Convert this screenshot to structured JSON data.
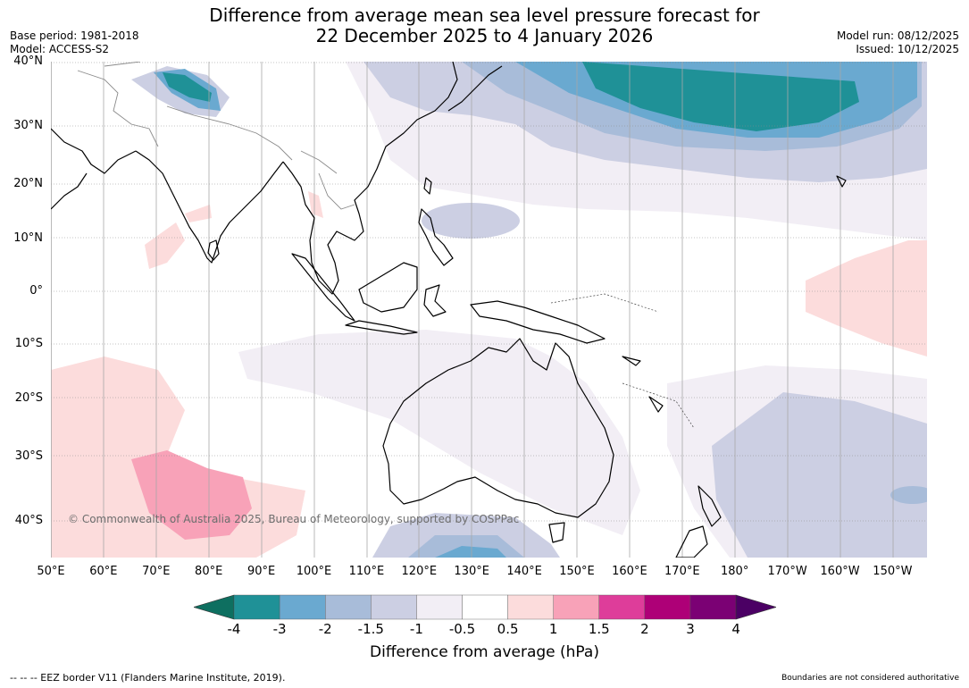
{
  "title": {
    "line1": "Difference from average mean sea level pressure forecast for",
    "line2": "22 December 2025 to 4 January 2026"
  },
  "meta": {
    "base_period": "Base period: 1981-2018",
    "model": "Model: ACCESS-S2",
    "model_run": "Model run: 08/12/2025",
    "issued": "Issued: 10/12/2025"
  },
  "map": {
    "lat_labels": [
      "40°N",
      "30°N",
      "20°N",
      "10°N",
      "0°",
      "10°S",
      "20°S",
      "30°S",
      "40°S"
    ],
    "lon_labels": [
      "50°E",
      "60°E",
      "70°E",
      "80°E",
      "90°E",
      "100°E",
      "110°E",
      "120°E",
      "130°E",
      "140°E",
      "150°E",
      "160°E",
      "170°E",
      "180°",
      "170°W",
      "160°W",
      "150°W"
    ],
    "copyright": "© Commonwealth of Australia 2025, Bureau of Meteorology, supported by COSPPac"
  },
  "legend": {
    "ticks": [
      "-4",
      "-3",
      "-2",
      "-1.5",
      "-1",
      "-0.5",
      "0.5",
      "1",
      "1.5",
      "2",
      "3",
      "4"
    ],
    "colors": [
      "#0e6f60",
      "#1f9197",
      "#6aa9d0",
      "#a8bcd9",
      "#cccfe3",
      "#f2eef5",
      "#ffffff",
      "#fcdcdc",
      "#f8a2b8",
      "#de3d9a",
      "#ae0077",
      "#7b0174",
      "#4b0064"
    ],
    "label": "Difference from average (hPa)"
  },
  "footer": {
    "eez_note": "--  --  -- EEZ border V11 (Flanders Marine Institute, 2019).",
    "disclaimer": "Boundaries are not considered authoritative"
  }
}
